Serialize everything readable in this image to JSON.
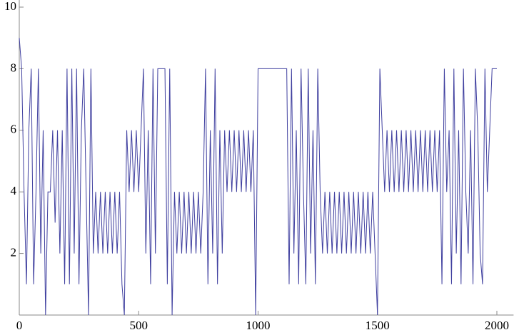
{
  "chart_data": {
    "type": "line",
    "x": [
      0,
      10,
      20,
      30,
      40,
      50,
      60,
      70,
      80,
      90,
      100,
      110,
      120,
      130,
      140,
      150,
      160,
      170,
      180,
      190,
      200,
      210,
      220,
      230,
      240,
      250,
      260,
      270,
      280,
      290,
      300,
      310,
      320,
      330,
      340,
      350,
      360,
      370,
      380,
      390,
      400,
      410,
      420,
      430,
      440,
      450,
      460,
      470,
      480,
      490,
      500,
      510,
      520,
      530,
      540,
      550,
      560,
      570,
      580,
      590,
      600,
      610,
      620,
      630,
      640,
      650,
      660,
      670,
      680,
      690,
      700,
      710,
      720,
      730,
      740,
      750,
      760,
      770,
      780,
      790,
      800,
      810,
      820,
      830,
      840,
      850,
      860,
      870,
      880,
      890,
      900,
      910,
      920,
      930,
      940,
      950,
      960,
      970,
      980,
      990,
      1000,
      1010,
      1020,
      1030,
      1040,
      1050,
      1060,
      1070,
      1080,
      1090,
      1100,
      1110,
      1120,
      1130,
      1140,
      1150,
      1160,
      1170,
      1180,
      1190,
      1200,
      1210,
      1220,
      1230,
      1240,
      1250,
      1260,
      1270,
      1280,
      1290,
      1300,
      1310,
      1320,
      1330,
      1340,
      1350,
      1360,
      1370,
      1380,
      1390,
      1400,
      1410,
      1420,
      1430,
      1440,
      1450,
      1460,
      1470,
      1480,
      1490,
      1500,
      1510,
      1520,
      1530,
      1540,
      1550,
      1560,
      1570,
      1580,
      1590,
      1600,
      1610,
      1620,
      1630,
      1640,
      1650,
      1660,
      1670,
      1680,
      1690,
      1700,
      1710,
      1720,
      1730,
      1740,
      1750,
      1760,
      1770,
      1780,
      1790,
      1800,
      1810,
      1820,
      1830,
      1840,
      1850,
      1860,
      1870,
      1880,
      1890,
      1900,
      1910,
      1920,
      1930,
      1940,
      1950,
      1960,
      1970,
      1980,
      1990,
      2000
    ],
    "series": [
      {
        "color": "#3f3f9f",
        "values": [
          9,
          8,
          4,
          1,
          6,
          8,
          1,
          4,
          8,
          2,
          6,
          0,
          4,
          4,
          6,
          3,
          6,
          2,
          6,
          1,
          8,
          1,
          8,
          2,
          8,
          1,
          6,
          8,
          4,
          0,
          8,
          2,
          4,
          2,
          4,
          2,
          4,
          2,
          4,
          2,
          4,
          2,
          4,
          1,
          0,
          6,
          4,
          6,
          4,
          6,
          4,
          6,
          8,
          2,
          6,
          1,
          8,
          2,
          8,
          8,
          8,
          8,
          1,
          8,
          0,
          4,
          2,
          4,
          2,
          4,
          2,
          4,
          2,
          4,
          2,
          4,
          2,
          4,
          8,
          1,
          6,
          2,
          8,
          1,
          6,
          2,
          6,
          4,
          6,
          4,
          6,
          4,
          6,
          4,
          6,
          4,
          6,
          4,
          6,
          0,
          8,
          8,
          8,
          8,
          8,
          8,
          8,
          8,
          8,
          8,
          8,
          8,
          8,
          1,
          8,
          2,
          6,
          1,
          8,
          4,
          1,
          8,
          2,
          6,
          1,
          8,
          4,
          2,
          4,
          2,
          4,
          2,
          4,
          2,
          4,
          2,
          4,
          2,
          4,
          2,
          4,
          2,
          4,
          2,
          4,
          2,
          4,
          2,
          4,
          2,
          0,
          8,
          6,
          4,
          6,
          4,
          6,
          4,
          6,
          4,
          6,
          4,
          6,
          4,
          6,
          4,
          6,
          4,
          6,
          4,
          6,
          4,
          6,
          4,
          6,
          4,
          6,
          1,
          8,
          4,
          6,
          1,
          8,
          2,
          6,
          1,
          8,
          4,
          2,
          6,
          1,
          8,
          6,
          2,
          1,
          8,
          4,
          6,
          8,
          8,
          8
        ]
      }
    ],
    "xlim": [
      0,
      2070
    ],
    "ylim": [
      0,
      10
    ],
    "xticks": [
      0,
      500,
      1000,
      1500,
      2000
    ],
    "yticks": [
      2,
      4,
      6,
      8,
      10
    ]
  }
}
